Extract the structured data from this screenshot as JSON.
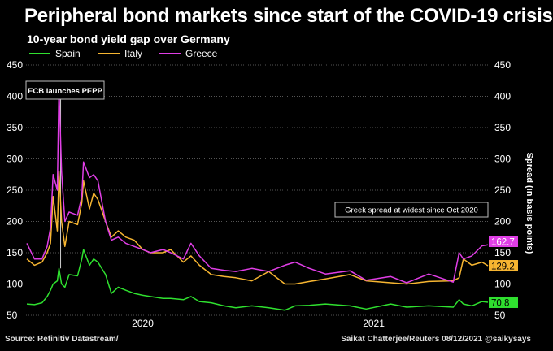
{
  "chart_data": {
    "type": "line",
    "title": "Peripheral bond markets since start of the COVID-19 crisis",
    "subtitle": "10-year bond yield gap over Germany",
    "ylabel": "Spread (in basis points)",
    "xlabel": "",
    "x_unit": "days since 2020-01-01 (approx.)",
    "xlim": [
      39,
      584
    ],
    "ylim": [
      50,
      450
    ],
    "yticks": [
      50,
      100,
      150,
      200,
      250,
      300,
      350,
      400,
      450
    ],
    "xticks": [
      {
        "label": "2020",
        "x": 176
      },
      {
        "label": "2021",
        "x": 449
      }
    ],
    "grid": "horizontal dotted",
    "legend_position": "top-left",
    "x": [
      39,
      48,
      57,
      63,
      67,
      70,
      75,
      77,
      80,
      84,
      89,
      99,
      104,
      106,
      113,
      118,
      123,
      132,
      139,
      147,
      156,
      166,
      176,
      185,
      200,
      209,
      224,
      233,
      243,
      257,
      272,
      286,
      305,
      325,
      344,
      356,
      373,
      392,
      421,
      440,
      469,
      488,
      514,
      543,
      550,
      555,
      565,
      577,
      584
    ],
    "series": [
      {
        "name": "Spain",
        "color": "#2fe02f",
        "end_label": "70.8",
        "label_text_color": "#000",
        "values": [
          68,
          67,
          70,
          80,
          90,
          100,
          105,
          125,
          100,
          95,
          115,
          113,
          140,
          155,
          130,
          140,
          135,
          115,
          85,
          95,
          90,
          85,
          82,
          80,
          77,
          77,
          75,
          80,
          72,
          70,
          65,
          62,
          65,
          62,
          58,
          65,
          66,
          68,
          65,
          60,
          68,
          63,
          65,
          63,
          75,
          68,
          65,
          72,
          70.8
        ]
      },
      {
        "name": "Italy",
        "color": "#f6b531",
        "end_label": "129.2",
        "label_text_color": "#000",
        "values": [
          140,
          130,
          135,
          150,
          165,
          240,
          185,
          280,
          200,
          160,
          200,
          195,
          230,
          265,
          220,
          245,
          235,
          200,
          175,
          185,
          175,
          170,
          155,
          150,
          150,
          155,
          135,
          145,
          130,
          115,
          112,
          110,
          105,
          120,
          100,
          100,
          104,
          108,
          115,
          105,
          102,
          100,
          104,
          105,
          110,
          140,
          130,
          135,
          129.2
        ]
      },
      {
        "name": "Greece",
        "color": "#e03ee6",
        "end_label": "162.7",
        "label_text_color": "#fff",
        "values": [
          165,
          140,
          140,
          160,
          190,
          275,
          250,
          415,
          280,
          200,
          215,
          210,
          240,
          295,
          270,
          275,
          265,
          200,
          170,
          175,
          165,
          160,
          155,
          150,
          155,
          150,
          140,
          165,
          145,
          125,
          122,
          120,
          125,
          120,
          130,
          135,
          125,
          116,
          121,
          106,
          112,
          102,
          116,
          103,
          150,
          140,
          145,
          161,
          162.7
        ]
      }
    ],
    "annotations": [
      {
        "text": "ECB launches PEPP",
        "x": 77
      },
      {
        "text": "Greek spread at widest since Oct 2020",
        "x": 584
      }
    ]
  },
  "footer": {
    "source": "Source: Refinitiv Datastream/",
    "credit": "Saikat Chatterjee/Reuters 08/12/2021 @saikysays"
  }
}
